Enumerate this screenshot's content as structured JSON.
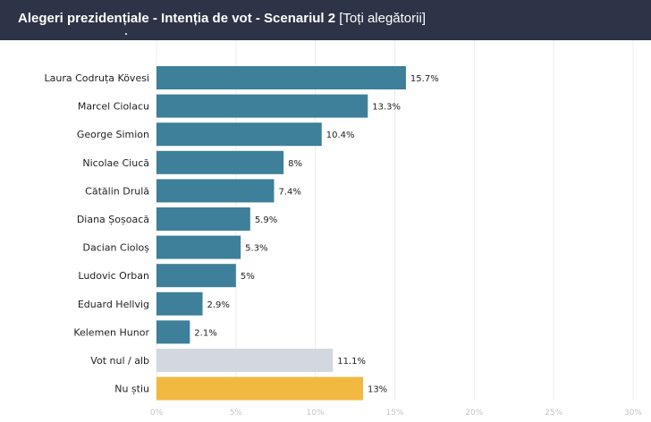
{
  "header": {
    "title_bold": "Alegeri prezidențiale - Intenția de vot - Scenariul 2",
    "title_bracket": "[Toți alegătorii]"
  },
  "chart_data": {
    "type": "bar",
    "orientation": "horizontal",
    "categories": [
      "Laura Codruța Kövesi",
      "Marcel Ciolacu",
      "George Simion",
      "Nicolae Ciucă",
      "Cătălin Drulă",
      "Diana Șoșoacă",
      "Dacian Cioloș",
      "Ludovic Orban",
      "Eduard Hellvig",
      "Kelemen Hunor",
      "Vot nul / alb",
      "Nu știu"
    ],
    "values": [
      15.7,
      13.3,
      10.4,
      8,
      7.4,
      5.9,
      5.3,
      5,
      2.9,
      2.1,
      11.1,
      13
    ],
    "value_labels": [
      "15.7%",
      "13.3%",
      "10.4%",
      "8%",
      "7.4%",
      "5.9%",
      "5.3%",
      "5%",
      "2.9%",
      "2.1%",
      "11.1%",
      "13%"
    ],
    "colors": [
      "#3e7f99",
      "#3e7f99",
      "#3e7f99",
      "#3e7f99",
      "#3e7f99",
      "#3e7f99",
      "#3e7f99",
      "#3e7f99",
      "#3e7f99",
      "#3e7f99",
      "#d3d7de",
      "#f2b941"
    ],
    "xlim": [
      0,
      30
    ],
    "xticks": [
      0,
      5,
      10,
      15,
      20,
      25,
      30
    ],
    "xtick_labels": [
      "0%",
      "5%",
      "10%",
      "15%",
      "20%",
      "25%",
      "30%"
    ],
    "grid": true,
    "title": "",
    "xlabel": "",
    "ylabel": ""
  }
}
